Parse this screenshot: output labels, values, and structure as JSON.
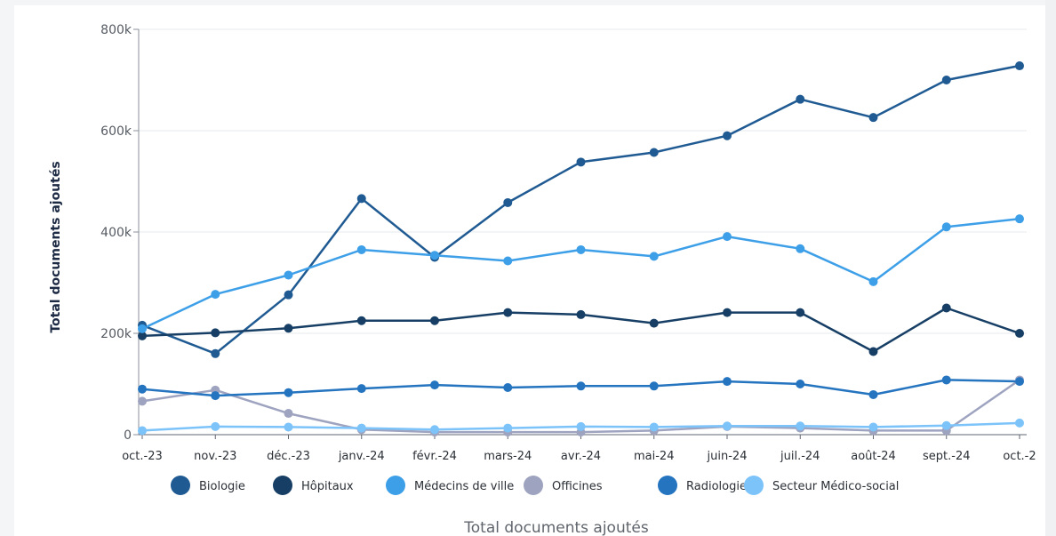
{
  "chart_data": {
    "type": "line",
    "ylabel": "Total documents ajoutés",
    "caption": "Total documents ajoutés",
    "categories": [
      "oct.-23",
      "nov.-23",
      "déc.-23",
      "janv.-24",
      "févr.-24",
      "mars-24",
      "avr.-24",
      "mai-24",
      "juin-24",
      "juil.-24",
      "août-24",
      "sept.-24",
      "oct.-2"
    ],
    "ylim": [
      0,
      800000
    ],
    "yticks": [
      0,
      200000,
      400000,
      600000,
      800000
    ],
    "ytick_labels": [
      "0",
      "200k",
      "400k",
      "600k",
      "800k"
    ],
    "grid": "horizontal",
    "legend_position": "bottom",
    "series": [
      {
        "name": "Biologie",
        "color": "#1f5a92",
        "values": [
          216000,
          160000,
          276000,
          466000,
          350000,
          458000,
          538000,
          557000,
          590000,
          662000,
          626000,
          700000,
          728000
        ]
      },
      {
        "name": "Hôpitaux",
        "color": "#173f65",
        "values": [
          195000,
          201000,
          210000,
          225000,
          225000,
          241000,
          237000,
          220000,
          241000,
          241000,
          164000,
          250000,
          200000
        ]
      },
      {
        "name": "Médecins de ville",
        "color": "#3d9fe8",
        "values": [
          209000,
          277000,
          315000,
          365000,
          354000,
          343000,
          365000,
          352000,
          391000,
          367000,
          302000,
          410000,
          426000
        ]
      },
      {
        "name": "Officines",
        "color": "#9ea3c0",
        "values": [
          66000,
          88000,
          42000,
          10000,
          5000,
          5000,
          5000,
          8000,
          16000,
          13000,
          8000,
          8000,
          108000
        ]
      },
      {
        "name": "Radiologie",
        "color": "#2574c0",
        "values": [
          90000,
          77000,
          83000,
          91000,
          98000,
          93000,
          96000,
          96000,
          105000,
          100000,
          79000,
          108000,
          105000
        ]
      },
      {
        "name": "Secteur Médico-social",
        "color": "#7cc3fa",
        "values": [
          8000,
          16000,
          15000,
          13000,
          10000,
          13000,
          16000,
          15000,
          17000,
          17000,
          15000,
          18000,
          23000
        ]
      }
    ]
  }
}
